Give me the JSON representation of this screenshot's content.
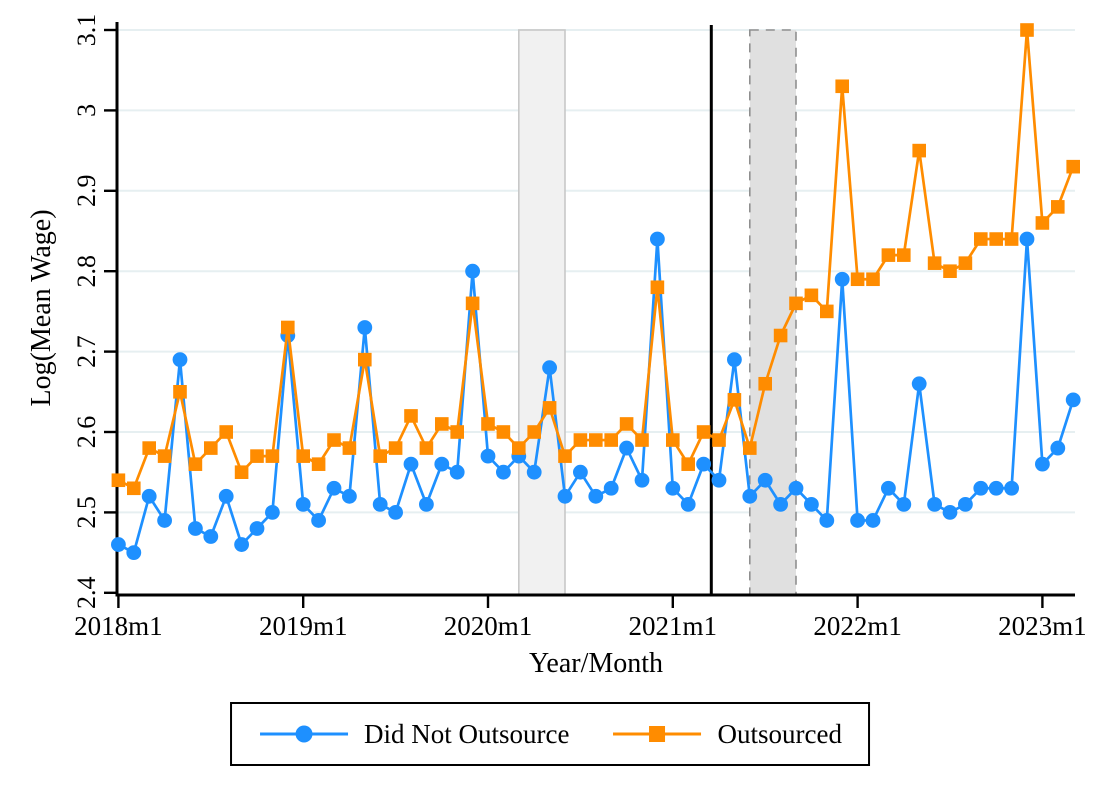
{
  "figure": {
    "background": "#ffffff",
    "axis_color": "#000000",
    "gridline_color": "#e6eff1"
  },
  "chart_data": {
    "type": "line",
    "title": "",
    "xlabel": "Year/Month",
    "ylabel": "Log(Mean Wage)",
    "ylim": [
      2.4,
      3.1
    ],
    "y_ticks": [
      2.4,
      2.5,
      2.6,
      2.7,
      2.8,
      2.9,
      3.0,
      3.1
    ],
    "y_tick_labels": [
      "2.4",
      "2.5",
      "2.6",
      "2.7",
      "2.8",
      "2.9",
      "3",
      "3.1"
    ],
    "x_start": "2018m1",
    "x_end": "2023m3",
    "x_tick_months": [
      0,
      12,
      24,
      36,
      48,
      60
    ],
    "x_tick_labels": [
      "2018m1",
      "2019m1",
      "2020m1",
      "2021m1",
      "2022m1",
      "2023m1"
    ],
    "grid": "horizontal-only",
    "legend_position": "bottom-center",
    "series": [
      {
        "name": "Did Not Outsource",
        "color": "#1E90FF",
        "marker": "circle",
        "values": [
          2.46,
          2.45,
          2.52,
          2.49,
          2.69,
          2.48,
          2.47,
          2.52,
          2.46,
          2.48,
          2.5,
          2.72,
          2.51,
          2.49,
          2.53,
          2.52,
          2.73,
          2.51,
          2.5,
          2.56,
          2.51,
          2.56,
          2.55,
          2.8,
          2.57,
          2.55,
          2.57,
          2.55,
          2.68,
          2.52,
          2.55,
          2.52,
          2.53,
          2.58,
          2.54,
          2.84,
          2.53,
          2.51,
          2.56,
          2.54,
          2.69,
          2.52,
          2.54,
          2.51,
          2.53,
          2.51,
          2.49,
          2.79,
          2.49,
          2.49,
          2.53,
          2.51,
          2.66,
          2.51,
          2.5,
          2.51,
          2.53,
          2.53,
          2.53,
          2.84,
          2.56,
          2.58,
          2.64
        ]
      },
      {
        "name": "Outsourced",
        "color": "#FF8C00",
        "marker": "square",
        "values": [
          2.54,
          2.53,
          2.58,
          2.57,
          2.65,
          2.56,
          2.58,
          2.6,
          2.55,
          2.57,
          2.57,
          2.73,
          2.57,
          2.56,
          2.59,
          2.58,
          2.69,
          2.57,
          2.58,
          2.62,
          2.58,
          2.61,
          2.6,
          2.76,
          2.61,
          2.6,
          2.58,
          2.6,
          2.63,
          2.57,
          2.59,
          2.59,
          2.59,
          2.61,
          2.59,
          2.78,
          2.59,
          2.56,
          2.6,
          2.59,
          2.64,
          2.58,
          2.66,
          2.72,
          2.76,
          2.77,
          2.75,
          3.03,
          2.79,
          2.79,
          2.82,
          2.82,
          2.95,
          2.81,
          2.8,
          2.81,
          2.84,
          2.84,
          2.84,
          3.1,
          2.86,
          2.88,
          2.93
        ]
      }
    ],
    "shaded_bands": [
      {
        "from_month": 26,
        "to_month": 29,
        "period": "2020m3-2020m6",
        "fill": "#f1f1f1",
        "border": "#c8c8c8",
        "border_style": "solid"
      },
      {
        "from_month": 41,
        "to_month": 44,
        "period": "2021m6-2021m9",
        "fill": "#e0e0e0",
        "border": "#8f8f8f",
        "border_style": "dashed"
      }
    ],
    "vertical_line": {
      "month": 38.5,
      "period": "2021m3/2021m4",
      "color": "#000000"
    }
  }
}
